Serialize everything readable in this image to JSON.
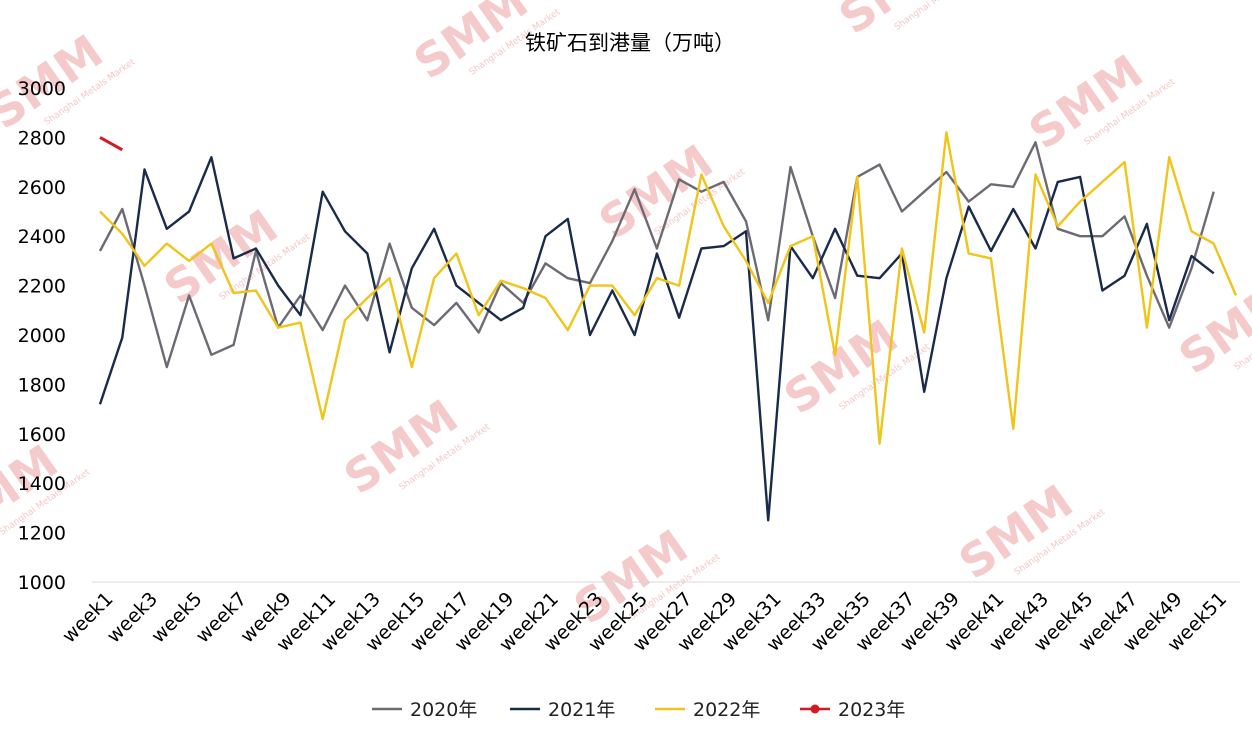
{
  "chart_data": {
    "type": "line",
    "title": "铁矿石到港量（万吨）",
    "xlabel": "",
    "ylabel": "",
    "ylim": [
      1000,
      3000
    ],
    "yticks": [
      1000,
      1200,
      1400,
      1600,
      1800,
      2000,
      2200,
      2400,
      2600,
      2800,
      3000
    ],
    "x": [
      1,
      2,
      3,
      4,
      5,
      6,
      7,
      8,
      9,
      10,
      11,
      12,
      13,
      14,
      15,
      16,
      17,
      18,
      19,
      20,
      21,
      22,
      23,
      24,
      25,
      26,
      27,
      28,
      29,
      30,
      31,
      32,
      33,
      34,
      35,
      36,
      37,
      38,
      39,
      40,
      41,
      42,
      43,
      44,
      45,
      46,
      47,
      48,
      49,
      50,
      51,
      52
    ],
    "xtick_labels": [
      "week1",
      "week3",
      "week5",
      "week7",
      "week9",
      "week11",
      "week13",
      "week15",
      "week17",
      "week19",
      "week21",
      "week23",
      "week25",
      "week27",
      "week29",
      "week31",
      "week33",
      "week35",
      "week37",
      "week39",
      "week41",
      "week43",
      "week45",
      "week47",
      "week49",
      "week51"
    ],
    "xtick_positions": [
      1,
      3,
      5,
      7,
      9,
      11,
      13,
      15,
      17,
      19,
      21,
      23,
      25,
      27,
      29,
      31,
      33,
      35,
      37,
      39,
      41,
      43,
      45,
      47,
      49,
      51
    ],
    "legend_position": "bottom",
    "grid": false,
    "series": [
      {
        "name": "2020年",
        "color": "#6e6a73",
        "values": [
          2340,
          2510,
          2200,
          1870,
          2160,
          1920,
          1960,
          2340,
          2030,
          2160,
          2020,
          2200,
          2060,
          2370,
          2110,
          2040,
          2130,
          2010,
          2210,
          2130,
          2290,
          2230,
          2210,
          2380,
          2590,
          2350,
          2630,
          2580,
          2620,
          2460,
          2060,
          2680,
          2400,
          2150,
          2640,
          2690,
          2500,
          2580,
          2660,
          2540,
          2610,
          2600,
          2780,
          2430,
          2400,
          2400,
          2480,
          2240,
          2030,
          2270,
          2580,
          null
        ]
      },
      {
        "name": "2021年",
        "color": "#1a2a4a",
        "values": [
          1720,
          1990,
          2670,
          2430,
          2500,
          2720,
          2310,
          2350,
          2200,
          2080,
          2580,
          2420,
          2330,
          1930,
          2270,
          2430,
          2200,
          2130,
          2060,
          2110,
          2400,
          2470,
          2000,
          2180,
          2000,
          2330,
          2070,
          2350,
          2360,
          2420,
          1250,
          2360,
          2230,
          2430,
          2240,
          2230,
          2330,
          1770,
          2230,
          2520,
          2340,
          2510,
          2350,
          2620,
          2640,
          2180,
          2240,
          2450,
          2060,
          2320,
          2250,
          null
        ]
      },
      {
        "name": "2022年",
        "color": "#f0c419",
        "values": [
          2500,
          2410,
          2280,
          2370,
          2300,
          2370,
          2170,
          2180,
          2030,
          2050,
          1660,
          2060,
          2150,
          2230,
          1870,
          2230,
          2330,
          2080,
          2220,
          2190,
          2150,
          2020,
          2200,
          2200,
          2080,
          2230,
          2200,
          2650,
          2440,
          2300,
          2130,
          2360,
          2400,
          1920,
          2640,
          1560,
          2350,
          2010,
          2820,
          2330,
          2310,
          1620,
          2650,
          2440,
          2540,
          2620,
          2700,
          2030,
          2720,
          2420,
          2370,
          2160
        ]
      },
      {
        "name": "2023年",
        "color": "#d6191e",
        "values": [
          2800,
          2750,
          null,
          null,
          null,
          null,
          null,
          null,
          null,
          null,
          null,
          null,
          null,
          null,
          null,
          null,
          null,
          null,
          null,
          null,
          null,
          null,
          null,
          null,
          null,
          null,
          null,
          null,
          null,
          null,
          null,
          null,
          null,
          null,
          null,
          null,
          null,
          null,
          null,
          null,
          null,
          null,
          null,
          null,
          null,
          null,
          null,
          null,
          null,
          null,
          null,
          null
        ]
      }
    ]
  },
  "watermark": {
    "text": "SMM",
    "subtext": "Shanghai Metals Market"
  }
}
